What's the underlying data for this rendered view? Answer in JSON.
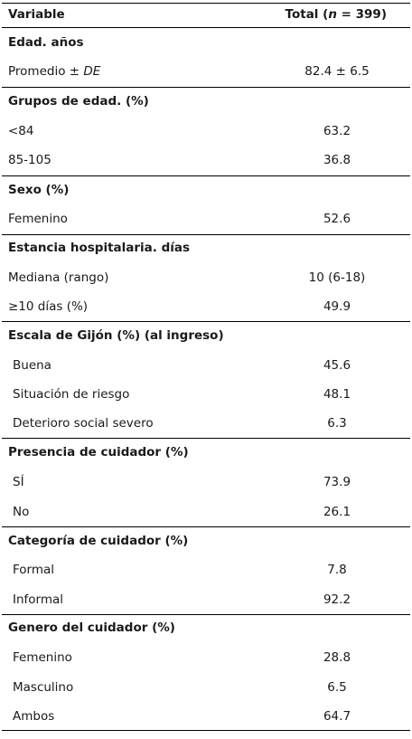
{
  "header": {
    "variable": "Variable",
    "total_prefix": "Total (",
    "total_n": "n",
    "total_suffix": " = 399)"
  },
  "sections": [
    {
      "title": "Edad. años",
      "rows": [
        {
          "label": "Promedio ± ",
          "label_italic": "DE",
          "value": "82.4 ± 6.5"
        }
      ]
    },
    {
      "title": "Grupos de edad. (%)",
      "rows": [
        {
          "label": "<84",
          "value": "63.2"
        },
        {
          "label": "85-105",
          "value": "36.8"
        }
      ]
    },
    {
      "title": "Sexo (%)",
      "rows": [
        {
          "label": "Femenino",
          "value": "52.6"
        }
      ]
    },
    {
      "title": "Estancia hospitalaria. días",
      "rows": [
        {
          "label": "Mediana (rango)",
          "value": "10 (6-18)"
        },
        {
          "label": "≥10 días (%)",
          "value": "49.9"
        }
      ]
    },
    {
      "title": "Escala de Gijón (%) (al ingreso)",
      "rows": [
        {
          "label": "Buena",
          "value": "45.6"
        },
        {
          "label": "Situación de riesgo",
          "value": "48.1"
        },
        {
          "label": "Deterioro social severo",
          "value": "6.3"
        }
      ]
    },
    {
      "title": "Presencia de cuidador (%)",
      "rows": [
        {
          "label": "SÍ",
          "value": "73.9"
        },
        {
          "label": "No",
          "value": "26.1"
        }
      ]
    },
    {
      "title": "Categoría de cuidador (%)",
      "rows": [
        {
          "label": "Formal",
          "value": "7.8"
        },
        {
          "label": "Informal",
          "value": "92.2"
        }
      ]
    },
    {
      "title": "Genero del cuidador (%)",
      "rows": [
        {
          "label": "Femenino",
          "value": "28.8"
        },
        {
          "label": "Masculino",
          "value": "6.5"
        },
        {
          "label": "Ambos",
          "value": "64.7"
        }
      ]
    }
  ]
}
